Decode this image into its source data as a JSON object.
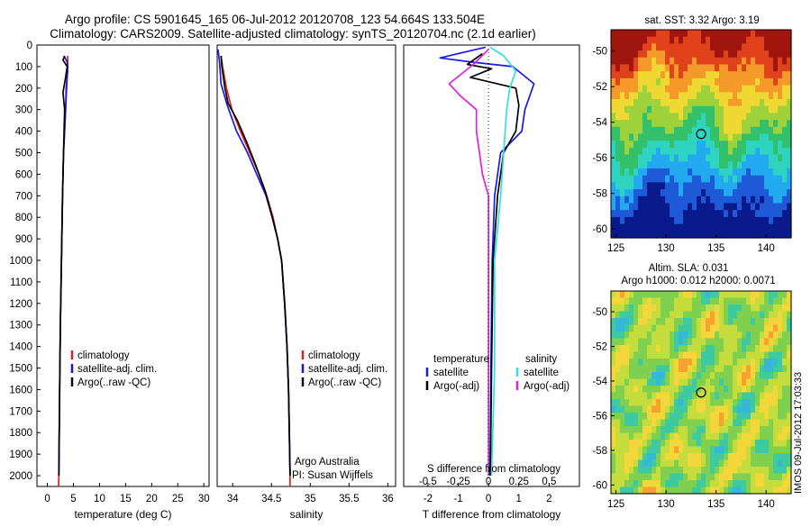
{
  "title": {
    "line1": "Argo profile: CS 5901645_165 06-Jul-2012 20120708_123 54.664S 133.504E",
    "line2": "Climatology: CARS2009. Satellite-adjusted climatology: synTS_20120704.nc (2.1d earlier)"
  },
  "colors": {
    "climatology": "#e0201c",
    "satellite": "#1a1adc",
    "argo": "#000000",
    "sal_satellite": "#33e0e0",
    "sal_argo": "#e020e0"
  },
  "side_text": "IMOS 09-Jul-2012 17:03:33",
  "chart_data": [
    {
      "type": "line",
      "panel": "temperature",
      "xlabel": "temperature (deg C)",
      "ylabel": "",
      "xlim": [
        -2,
        31
      ],
      "ylim": [
        2050,
        0
      ],
      "x_ticks": [
        0,
        5,
        10,
        15,
        20,
        25,
        30
      ],
      "y_ticks": [
        0,
        100,
        200,
        300,
        400,
        500,
        600,
        700,
        800,
        900,
        1000,
        1100,
        1200,
        1300,
        1400,
        1500,
        1600,
        1700,
        1800,
        1900,
        2000
      ],
      "legend": [
        "climatology",
        "satellite-adj. clim.",
        "Argo(..raw -QC)"
      ],
      "series": [
        {
          "name": "climatology",
          "color": "#e0201c",
          "points": [
            [
              3.9,
              50
            ],
            [
              3.9,
              100
            ],
            [
              3.7,
              200
            ],
            [
              3.5,
              300
            ],
            [
              3.3,
              400
            ],
            [
              3.1,
              500
            ],
            [
              2.9,
              700
            ],
            [
              2.7,
              1000
            ],
            [
              2.5,
              1300
            ],
            [
              2.35,
              1600
            ],
            [
              2.2,
              2000
            ],
            [
              2.15,
              2050
            ]
          ]
        },
        {
          "name": "satellite-adj. clim.",
          "color": "#1a1adc",
          "points": [
            [
              3.2,
              50
            ],
            [
              3.8,
              80
            ],
            [
              3.9,
              120
            ],
            [
              3.6,
              200
            ],
            [
              3.5,
              300
            ],
            [
              3.3,
              400
            ],
            [
              3.1,
              500
            ],
            [
              2.9,
              700
            ],
            [
              2.7,
              1000
            ],
            [
              2.5,
              1300
            ],
            [
              2.35,
              1600
            ],
            [
              2.2,
              2000
            ]
          ]
        },
        {
          "name": "Argo(..raw -QC)",
          "color": "#000000",
          "points": [
            [
              3.3,
              50
            ],
            [
              3.0,
              70
            ],
            [
              3.8,
              100
            ],
            [
              3.5,
              150
            ],
            [
              3.0,
              220
            ],
            [
              3.3,
              300
            ],
            [
              3.2,
              400
            ],
            [
              3.1,
              500
            ],
            [
              2.9,
              700
            ],
            [
              2.7,
              1000
            ],
            [
              2.5,
              1300
            ],
            [
              2.35,
              1600
            ],
            [
              2.2,
              2000
            ]
          ]
        }
      ]
    },
    {
      "type": "line",
      "panel": "salinity",
      "xlabel": "salinity",
      "ylabel": "",
      "xlim": [
        33.8,
        36.1
      ],
      "ylim": [
        2050,
        0
      ],
      "x_ticks": [
        34,
        34.5,
        35,
        35.5,
        36
      ],
      "legend": [
        "climatology",
        "satellite-adj. clim.",
        "Argo(..raw -QC)"
      ],
      "annotation": [
        "Argo Australia",
        "PI: Susan Wijffels"
      ],
      "series": [
        {
          "name": "climatology",
          "color": "#e0201c",
          "points": [
            [
              33.85,
              50
            ],
            [
              33.87,
              100
            ],
            [
              33.92,
              200
            ],
            [
              33.99,
              300
            ],
            [
              34.1,
              400
            ],
            [
              34.22,
              500
            ],
            [
              34.34,
              600
            ],
            [
              34.44,
              700
            ],
            [
              34.52,
              800
            ],
            [
              34.58,
              900
            ],
            [
              34.63,
              1000
            ],
            [
              34.67,
              1200
            ],
            [
              34.7,
              1400
            ],
            [
              34.72,
              1600
            ],
            [
              34.73,
              1800
            ],
            [
              34.74,
              2000
            ],
            [
              34.74,
              2050
            ]
          ]
        },
        {
          "name": "satellite-adj. clim.",
          "color": "#1a1adc",
          "points": [
            [
              33.81,
              20
            ],
            [
              33.83,
              80
            ],
            [
              33.85,
              180
            ],
            [
              33.93,
              280
            ],
            [
              34.05,
              400
            ],
            [
              34.19,
              500
            ],
            [
              34.31,
              600
            ],
            [
              34.43,
              700
            ],
            [
              34.51,
              800
            ],
            [
              34.58,
              900
            ],
            [
              34.63,
              1000
            ],
            [
              34.67,
              1200
            ],
            [
              34.7,
              1400
            ],
            [
              34.72,
              1600
            ],
            [
              34.73,
              1800
            ],
            [
              34.74,
              2000
            ]
          ]
        },
        {
          "name": "Argo(..raw -QC)",
          "color": "#000000",
          "points": [
            [
              33.85,
              50
            ],
            [
              33.86,
              100
            ],
            [
              33.9,
              200
            ],
            [
              33.94,
              270
            ],
            [
              34.06,
              350
            ],
            [
              34.18,
              450
            ],
            [
              34.3,
              560
            ],
            [
              34.42,
              680
            ],
            [
              34.51,
              800
            ],
            [
              34.58,
              900
            ],
            [
              34.63,
              1000
            ],
            [
              34.67,
              1200
            ],
            [
              34.7,
              1400
            ],
            [
              34.72,
              1600
            ],
            [
              34.73,
              1800
            ],
            [
              34.74,
              2000
            ]
          ]
        }
      ]
    },
    {
      "type": "line",
      "panel": "difference",
      "xlabel": "T difference from climatology",
      "top_label": "S difference from climatology",
      "xlim": [
        -2.8,
        3.0
      ],
      "ylim": [
        2050,
        0
      ],
      "x_ticks": [
        -2,
        -1,
        0,
        1,
        2
      ],
      "top_ticks": [
        "-0.5",
        "-0.25",
        "0",
        "0.25",
        "0.5"
      ],
      "legend_headers": [
        "temperature",
        "salinity"
      ],
      "legend": [
        "satellite",
        "Argo(-adj)",
        "satellite",
        "Argo(-adj)"
      ],
      "series": [
        {
          "name": "temperature satellite",
          "color": "#1a1adc",
          "points": [
            [
              -0.1,
              10
            ],
            [
              -1.6,
              60
            ],
            [
              -0.5,
              80
            ],
            [
              0.8,
              100
            ],
            [
              1.5,
              180
            ],
            [
              1.2,
              300
            ],
            [
              1.1,
              400
            ],
            [
              0.4,
              500
            ],
            [
              0.2,
              700
            ],
            [
              0.12,
              1000
            ],
            [
              0.08,
              1500
            ],
            [
              0.05,
              2000
            ]
          ]
        },
        {
          "name": "temperature Argo(-adj)",
          "color": "#000000",
          "points": [
            [
              -0.2,
              40
            ],
            [
              -0.7,
              90
            ],
            [
              0.1,
              110
            ],
            [
              -0.6,
              150
            ],
            [
              0.9,
              200
            ],
            [
              1.0,
              280
            ],
            [
              0.9,
              400
            ],
            [
              0.5,
              500
            ],
            [
              0.3,
              700
            ],
            [
              0.15,
              1000
            ],
            [
              0.1,
              1500
            ],
            [
              0.06,
              2000
            ]
          ]
        },
        {
          "name": "salinity satellite",
          "color": "#33e0e0",
          "points": [
            [
              0.05,
              10
            ],
            [
              0.5,
              50
            ],
            [
              0.9,
              120
            ],
            [
              0.7,
              200
            ],
            [
              0.6,
              300
            ],
            [
              0.5,
              500
            ],
            [
              0.4,
              700
            ],
            [
              0.2,
              1000
            ],
            [
              0.2,
              1500
            ],
            [
              0.1,
              2000
            ]
          ]
        },
        {
          "name": "salinity Argo(-adj)",
          "color": "#e020e0",
          "points": [
            [
              0.0,
              20
            ],
            [
              -0.5,
              90
            ],
            [
              -1.3,
              180
            ],
            [
              -0.9,
              240
            ],
            [
              -0.4,
              300
            ],
            [
              -0.4,
              400
            ],
            [
              -0.3,
              500
            ],
            [
              -0.2,
              600
            ],
            [
              0.0,
              700
            ],
            [
              0.0,
              1000
            ],
            [
              0.0,
              1500
            ],
            [
              0.0,
              2000
            ]
          ]
        }
      ]
    },
    {
      "type": "heatmap",
      "panel": "sst",
      "title": "sat. SST: 3.32 Argo: 3.19",
      "xlim": [
        124.5,
        142.5
      ],
      "ylim": [
        -60.5,
        -48.8
      ],
      "x_ticks": [
        125,
        130,
        135,
        140
      ],
      "y_ticks": [
        -50,
        -52,
        -54,
        -56,
        -58,
        -60
      ],
      "marker": [
        133.504,
        -54.664
      ],
      "colormap": [
        "#0a1a8c",
        "#1e5ad8",
        "#22aaf0",
        "#2ed4c0",
        "#33c06a",
        "#9ed23a",
        "#f0d832",
        "#f59a28",
        "#e0421c",
        "#a0160e"
      ]
    },
    {
      "type": "heatmap",
      "panel": "sla",
      "title_line1": "Altim. SLA: 0.031",
      "title_line2": "Argo h1000: 0.012 h2000: 0.0071",
      "xlim": [
        124.5,
        142.5
      ],
      "ylim": [
        -60.5,
        -48.8
      ],
      "x_ticks": [
        125,
        130,
        135,
        140
      ],
      "y_ticks": [
        -50,
        -52,
        -54,
        -56,
        -58,
        -60
      ],
      "marker": [
        133.504,
        -54.664
      ],
      "colormap": [
        "#2a74d6",
        "#35b7d8",
        "#3dcaa0",
        "#7ed04e",
        "#c4dc3c",
        "#f2d63a",
        "#f5a22e",
        "#e85a1e"
      ]
    }
  ]
}
